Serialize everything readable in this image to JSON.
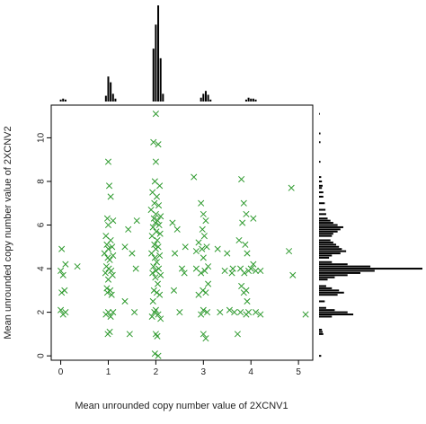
{
  "chart_data": {
    "type": "scatter",
    "title": "",
    "xlabel": "Mean unrounded copy number value of 2XCNV1",
    "ylabel": "Mean unrounded copy number value of 2XCNV2",
    "xlim": [
      -0.2,
      5.3
    ],
    "ylim": [
      -0.2,
      11.5
    ],
    "x_ticks": [
      0,
      1,
      2,
      3,
      4,
      5
    ],
    "y_ticks": [
      0,
      2,
      4,
      6,
      8,
      10
    ],
    "marker": "x",
    "marker_color": "#2e9a2e",
    "grid": false,
    "legend": "none",
    "series": [
      {
        "points": [
          [
            0.02,
            4.9
          ],
          [
            0.0,
            3.9
          ],
          [
            0.05,
            3.7
          ],
          [
            0.1,
            4.2
          ],
          [
            0.02,
            2.9
          ],
          [
            0.08,
            3.0
          ],
          [
            0.0,
            2.1
          ],
          [
            0.05,
            1.9
          ],
          [
            0.1,
            2.0
          ],
          [
            0.35,
            4.1
          ],
          [
            1.0,
            8.9
          ],
          [
            1.02,
            7.8
          ],
          [
            1.05,
            7.3
          ],
          [
            0.98,
            6.3
          ],
          [
            1.1,
            6.2
          ],
          [
            1.0,
            6.0
          ],
          [
            0.95,
            5.5
          ],
          [
            1.05,
            5.3
          ],
          [
            0.97,
            5.1
          ],
          [
            1.08,
            5.0
          ],
          [
            1.0,
            4.9
          ],
          [
            0.92,
            4.7
          ],
          [
            1.1,
            4.6
          ],
          [
            0.99,
            4.5
          ],
          [
            1.03,
            4.4
          ],
          [
            0.96,
            4.1
          ],
          [
            1.01,
            4.0
          ],
          [
            1.06,
            3.9
          ],
          [
            0.94,
            3.8
          ],
          [
            1.09,
            3.7
          ],
          [
            1.0,
            3.5
          ],
          [
            0.97,
            3.1
          ],
          [
            1.04,
            3.0
          ],
          [
            0.98,
            2.9
          ],
          [
            1.07,
            2.8
          ],
          [
            1.0,
            2.0
          ],
          [
            0.95,
            1.9
          ],
          [
            1.05,
            1.8
          ],
          [
            1.1,
            2.0
          ],
          [
            0.99,
            1.0
          ],
          [
            1.03,
            1.1
          ],
          [
            1.35,
            5.0
          ],
          [
            1.42,
            5.8
          ],
          [
            1.5,
            4.7
          ],
          [
            1.58,
            4.0
          ],
          [
            1.35,
            2.5
          ],
          [
            1.55,
            2.0
          ],
          [
            1.45,
            1.0
          ],
          [
            1.6,
            6.2
          ],
          [
            2.0,
            11.1
          ],
          [
            1.95,
            9.8
          ],
          [
            2.05,
            9.7
          ],
          [
            2.0,
            8.9
          ],
          [
            1.98,
            8.0
          ],
          [
            2.08,
            7.8
          ],
          [
            1.93,
            7.5
          ],
          [
            2.02,
            7.3
          ],
          [
            1.97,
            7.0
          ],
          [
            2.06,
            6.9
          ],
          [
            1.9,
            6.7
          ],
          [
            2.0,
            6.5
          ],
          [
            2.1,
            6.4
          ],
          [
            1.96,
            6.3
          ],
          [
            2.04,
            6.2
          ],
          [
            1.99,
            6.1
          ],
          [
            2.07,
            6.0
          ],
          [
            1.94,
            5.9
          ],
          [
            2.01,
            5.7
          ],
          [
            2.09,
            5.6
          ],
          [
            1.92,
            5.5
          ],
          [
            2.03,
            5.3
          ],
          [
            1.97,
            5.1
          ],
          [
            2.05,
            5.0
          ],
          [
            2.0,
            4.9
          ],
          [
            1.91,
            4.7
          ],
          [
            2.08,
            4.6
          ],
          [
            1.98,
            4.5
          ],
          [
            2.02,
            4.3
          ],
          [
            1.95,
            4.1
          ],
          [
            2.06,
            4.0
          ],
          [
            2.0,
            3.9
          ],
          [
            1.93,
            3.8
          ],
          [
            2.1,
            3.7
          ],
          [
            1.99,
            3.6
          ],
          [
            2.04,
            3.3
          ],
          [
            1.96,
            3.0
          ],
          [
            2.02,
            2.9
          ],
          [
            2.08,
            2.8
          ],
          [
            1.94,
            2.5
          ],
          [
            2.0,
            2.1
          ],
          [
            1.97,
            2.0
          ],
          [
            2.05,
            1.9
          ],
          [
            1.92,
            1.8
          ],
          [
            2.1,
            1.7
          ],
          [
            2.0,
            1.0
          ],
          [
            2.03,
            0.9
          ],
          [
            1.98,
            0.1
          ],
          [
            2.05,
            0.0
          ],
          [
            2.35,
            6.1
          ],
          [
            2.45,
            5.8
          ],
          [
            2.4,
            4.7
          ],
          [
            2.55,
            4.0
          ],
          [
            2.6,
            3.8
          ],
          [
            2.38,
            3.0
          ],
          [
            2.5,
            2.0
          ],
          [
            2.62,
            5.0
          ],
          [
            2.8,
            8.2
          ],
          [
            2.95,
            7.0
          ],
          [
            3.0,
            6.5
          ],
          [
            3.05,
            6.2
          ],
          [
            2.98,
            5.8
          ],
          [
            3.02,
            5.5
          ],
          [
            2.9,
            5.2
          ],
          [
            3.07,
            5.0
          ],
          [
            2.97,
            4.9
          ],
          [
            3.0,
            4.5
          ],
          [
            2.85,
            4.0
          ],
          [
            3.03,
            3.9
          ],
          [
            2.95,
            3.8
          ],
          [
            3.1,
            4.1
          ],
          [
            2.99,
            3.0
          ],
          [
            3.05,
            2.9
          ],
          [
            2.9,
            2.8
          ],
          [
            3.0,
            2.1
          ],
          [
            2.95,
            1.9
          ],
          [
            3.08,
            2.0
          ],
          [
            3.0,
            1.0
          ],
          [
            3.05,
            0.8
          ],
          [
            2.85,
            4.8
          ],
          [
            3.1,
            3.3
          ],
          [
            3.3,
            4.9
          ],
          [
            3.5,
            4.7
          ],
          [
            3.45,
            3.9
          ],
          [
            3.6,
            3.8
          ],
          [
            3.35,
            2.0
          ],
          [
            3.55,
            2.1
          ],
          [
            3.65,
            2.0
          ],
          [
            3.8,
            8.1
          ],
          [
            3.85,
            7.0
          ],
          [
            3.9,
            6.5
          ],
          [
            3.82,
            6.1
          ],
          [
            3.75,
            5.3
          ],
          [
            3.88,
            5.1
          ],
          [
            3.92,
            4.7
          ],
          [
            3.78,
            4.0
          ],
          [
            3.86,
            3.8
          ],
          [
            3.95,
            3.9
          ],
          [
            3.8,
            3.2
          ],
          [
            3.9,
            3.0
          ],
          [
            3.85,
            2.9
          ],
          [
            3.78,
            2.0
          ],
          [
            3.9,
            1.9
          ],
          [
            3.95,
            2.0
          ],
          [
            3.72,
            1.0
          ],
          [
            3.62,
            4.0
          ],
          [
            3.92,
            2.5
          ],
          [
            4.0,
            4.0
          ],
          [
            4.1,
            3.9
          ],
          [
            4.2,
            3.9
          ],
          [
            4.1,
            2.0
          ],
          [
            4.2,
            1.9
          ],
          [
            4.05,
            4.2
          ],
          [
            4.05,
            6.3
          ],
          [
            4.8,
            4.8
          ],
          [
            4.85,
            7.7
          ],
          [
            4.88,
            3.7
          ],
          [
            5.15,
            1.9
          ]
        ]
      }
    ],
    "x_histogram": {
      "bins": [
        0.0,
        0.05,
        0.1,
        0.95,
        1.0,
        1.05,
        1.1,
        1.15,
        1.95,
        2.0,
        2.05,
        2.1,
        2.15,
        2.95,
        3.0,
        3.05,
        3.1,
        3.15,
        3.9,
        3.95,
        4.0,
        4.05,
        4.1
      ],
      "counts": [
        2,
        3,
        2,
        6,
        26,
        20,
        8,
        3,
        55,
        80,
        100,
        45,
        8,
        4,
        8,
        11,
        7,
        2,
        2,
        4,
        3,
        3,
        2
      ]
    },
    "y_histogram": {
      "bins": [
        0.0,
        1.0,
        1.1,
        1.2,
        1.8,
        1.9,
        2.0,
        2.1,
        2.2,
        2.5,
        2.8,
        2.9,
        3.0,
        3.1,
        3.2,
        3.5,
        3.6,
        3.7,
        3.8,
        3.9,
        4.0,
        4.1,
        4.2,
        4.3,
        4.5,
        4.6,
        4.7,
        4.8,
        4.9,
        5.0,
        5.1,
        5.2,
        5.3,
        5.5,
        5.6,
        5.7,
        5.8,
        5.9,
        6.0,
        6.1,
        6.2,
        6.3,
        6.5,
        6.7,
        7.0,
        7.3,
        7.5,
        7.7,
        7.8,
        8.0,
        8.2,
        8.9,
        9.8,
        10.2,
        11.1
      ],
      "counts": [
        3,
        6,
        5,
        4,
        18,
        48,
        40,
        22,
        10,
        8,
        26,
        35,
        28,
        18,
        10,
        12,
        22,
        40,
        58,
        78,
        145,
        72,
        40,
        18,
        14,
        18,
        30,
        38,
        32,
        28,
        24,
        20,
        16,
        18,
        20,
        26,
        30,
        34,
        26,
        20,
        16,
        12,
        10,
        9,
        8,
        6,
        6,
        4,
        5,
        4,
        3,
        2,
        2,
        2,
        1
      ]
    }
  }
}
